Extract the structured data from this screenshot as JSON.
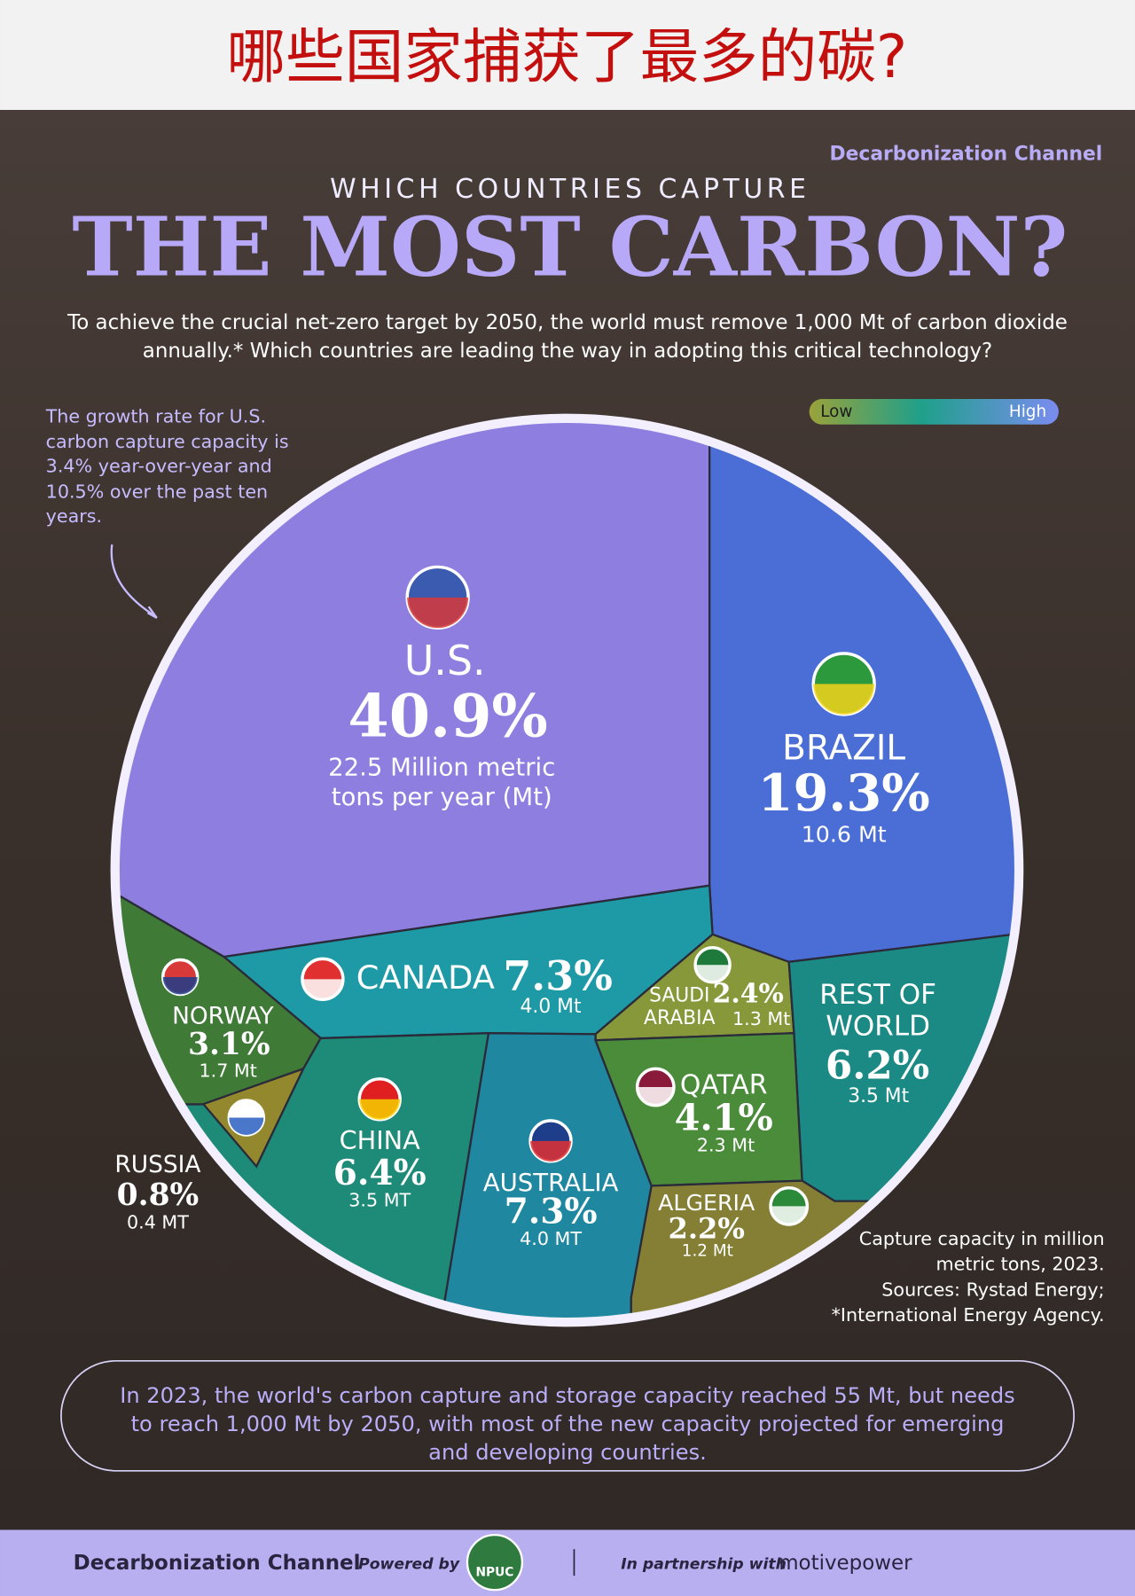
{
  "header": {
    "title": "哪些国家捕获了最多的碳?"
  },
  "chart_data": {
    "type": "voronoi-treemap",
    "brand": "Decarbonization Channel",
    "kicker": "WHICH COUNTRIES CAPTURE",
    "title": "THE MOST CARBON?",
    "subtitle": "To achieve the crucial net-zero target by 2050, the world must remove 1,000 Mt of carbon dioxide annually.* Which countries are leading the way in adopting this critical technology?",
    "annotation": "The growth rate for U.S. carbon capture capacity is 3.4% year-over-year and 10.5% over the past ten years.",
    "legend": {
      "low": "Low",
      "high": "High"
    },
    "categories": [
      "U.S.",
      "BRAZIL",
      "CANADA",
      "SAUDI ARABIA",
      "REST OF WORLD",
      "NORWAY",
      "RUSSIA",
      "CHINA",
      "AUSTRALIA",
      "QATAR",
      "ALGERIA"
    ],
    "values": [
      40.9,
      19.3,
      7.3,
      2.4,
      6.2,
      3.1,
      0.8,
      6.4,
      7.3,
      4.1,
      2.2
    ],
    "value_labels": [
      "40.9%",
      "19.3%",
      "7.3%",
      "2.4%",
      "6.2%",
      "3.1%",
      "0.8%",
      "6.4%",
      "7.3%",
      "4.1%",
      "2.2%"
    ],
    "capacity_labels": [
      "22.5 Million metric tons per year (Mt)",
      "10.6 Mt",
      "4.0 Mt",
      "1.3 Mt",
      "3.5 Mt",
      "1.7 Mt",
      "0.4 MT",
      "3.5 MT",
      "4.0 MT",
      "2.3 Mt",
      "1.2 Mt"
    ],
    "colors": [
      "#8d7ee0",
      "#4a6ed6",
      "#1e9aa6",
      "#87983a",
      "#1b8a85",
      "#3f7a36",
      "#94882e",
      "#1e8a78",
      "#1f88a0",
      "#4a8c3a",
      "#857f36"
    ],
    "note": "Capture capacity in million metric tons, 2023.",
    "sources": "Sources: Rystad Energy; *International Energy Agency."
  },
  "callout": "In 2023, the world's carbon capture and storage capacity reached 55 Mt, but needs to reach 1,000 Mt by 2050, with most of the new capacity projected for emerging and developing countries.",
  "footer": {
    "brand": "Decarbonization Channel",
    "powered_by": "Powered by",
    "npuc": "NPUC",
    "partnership": "In partnership with",
    "partner": "motivepower"
  }
}
